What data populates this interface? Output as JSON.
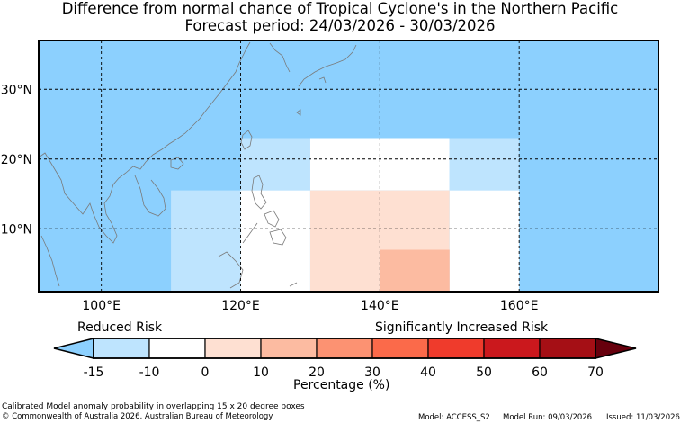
{
  "title_line1": "Difference from normal chance of Tropical Cyclone's in the Northern Pacific",
  "title_line2": "Forecast period: 24/03/2026 - 30/03/2026",
  "map": {
    "lon_range": [
      91,
      180
    ],
    "lat_range": [
      1,
      37
    ],
    "x_ticks": [
      {
        "value": 100,
        "label": "100°E"
      },
      {
        "value": 120,
        "label": "120°E"
      },
      {
        "value": 140,
        "label": "140°E"
      },
      {
        "value": 160,
        "label": "160°E"
      }
    ],
    "y_ticks": [
      {
        "value": 10,
        "label": "10°N"
      },
      {
        "value": 20,
        "label": "20°N"
      },
      {
        "value": 30,
        "label": "30°N"
      }
    ],
    "background_color": "#8cd0fe",
    "cells": [
      {
        "lon0": 120,
        "lon1": 130,
        "lat0": 15.5,
        "lat1": 23,
        "color": "#bee4fe"
      },
      {
        "lon0": 130,
        "lon1": 150,
        "lat0": 15.5,
        "lat1": 23,
        "color": "#ffffff"
      },
      {
        "lon0": 150,
        "lon1": 160,
        "lat0": 15.5,
        "lat1": 23,
        "color": "#bee4fe"
      },
      {
        "lon0": 110,
        "lon1": 120,
        "lat0": 1,
        "lat1": 15.5,
        "color": "#bee4fe"
      },
      {
        "lon0": 120,
        "lon1": 130,
        "lat0": 1,
        "lat1": 15.5,
        "color": "#ffffff"
      },
      {
        "lon0": 130,
        "lon1": 150,
        "lat0": 1,
        "lat1": 15.5,
        "color": "#fee0d2"
      },
      {
        "lon0": 150,
        "lon1": 160,
        "lat0": 1,
        "lat1": 15.5,
        "color": "#ffffff"
      },
      {
        "lon0": 140,
        "lon1": 150,
        "lat0": 1,
        "lat1": 7,
        "color": "#fcbba1"
      }
    ]
  },
  "colorbar": {
    "label_left": "Reduced Risk",
    "label_right": "Significantly Increased Risk",
    "title": "Percentage (%)",
    "ticks": [
      "-15",
      "-10",
      "0",
      "10",
      "20",
      "30",
      "40",
      "50",
      "60",
      "70"
    ],
    "under_color": "#8cd0fe",
    "over_color": "#67000d",
    "colors": [
      "#bee4fe",
      "#ffffff",
      "#fee0d2",
      "#fcbba1",
      "#fc9272",
      "#fb6a4a",
      "#ef3b2c",
      "#cb181d",
      "#a50f15"
    ]
  },
  "footer": {
    "line1": "Calibrated Model anomaly probability in overlapping 15 x 20 degree boxes",
    "line2": "© Commonwealth of Australia 2026, Australian Bureau of Meteorology",
    "model": "Model: ACCESS_S2",
    "model_run": "Model Run: 09/03/2026",
    "issued": "Issued: 11/03/2026"
  }
}
